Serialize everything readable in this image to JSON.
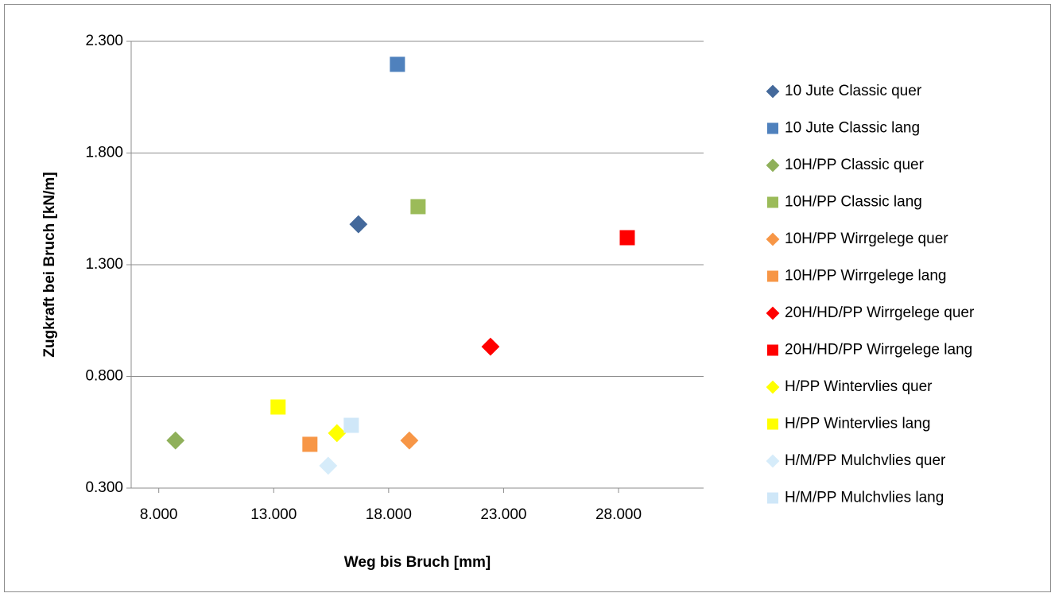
{
  "chart_data": {
    "type": "scatter",
    "x_label": "Weg bis Bruch [mm]",
    "y_label": "Zugkraft bei Bruch [kN/m]",
    "xlim": [
      6800,
      31700
    ],
    "ylim": [
      300,
      2300
    ],
    "xticks": [
      {
        "value": 8000,
        "label": "8.000"
      },
      {
        "value": 13000,
        "label": "13.000"
      },
      {
        "value": 18000,
        "label": "18.000"
      },
      {
        "value": 23000,
        "label": "23.000"
      },
      {
        "value": 28000,
        "label": "28.000"
      }
    ],
    "yticks": [
      {
        "value": 300,
        "label": "0.300"
      },
      {
        "value": 800,
        "label": "0.800"
      },
      {
        "value": 1300,
        "label": "1.300"
      },
      {
        "value": 1800,
        "label": "1.800"
      },
      {
        "value": 2300,
        "label": "2.300"
      }
    ],
    "grid": true,
    "legend": "right",
    "series": [
      {
        "name": "10 Jute Classic quer",
        "color": "#44699b",
        "marker": "diamond",
        "x": [
          16685
        ],
        "values": [
          1481
        ]
      },
      {
        "name": "10 Jute Classic lang",
        "color": "#4f81bd",
        "marker": "square",
        "x": [
          18381
        ],
        "values": [
          2197
        ]
      },
      {
        "name": "10H/PP Classic quer",
        "color": "#8fb05a",
        "marker": "diamond",
        "x": [
          8727
        ],
        "values": [
          513
        ]
      },
      {
        "name": "10H/PP Classic lang",
        "color": "#9bbb59",
        "marker": "square",
        "x": [
          19280
        ],
        "values": [
          1560
        ]
      },
      {
        "name": "10H/PP Wirrgelege quer",
        "color": "#f79646",
        "marker": "diamond",
        "x": [
          18900
        ],
        "values": [
          513
        ]
      },
      {
        "name": "10H/PP Wirrgelege lang",
        "color": "#f79646",
        "marker": "square",
        "x": [
          14575
        ],
        "values": [
          496
        ]
      },
      {
        "name": "20H/HD/PP Wirrgelege quer",
        "color": "#ff0000",
        "marker": "diamond",
        "x": [
          22430
        ],
        "values": [
          933
        ]
      },
      {
        "name": "20H/HD/PP Wirrgelege lang",
        "color": "#ff0000",
        "marker": "square",
        "x": [
          28380
        ],
        "values": [
          1421
        ]
      },
      {
        "name": "H/PP Wintervlies quer",
        "color": "#ffff00",
        "marker": "diamond",
        "x": [
          15751
        ],
        "values": [
          546
        ]
      },
      {
        "name": "H/PP Wintervlies lang",
        "color": "#ffff00",
        "marker": "square",
        "x": [
          13190
        ],
        "values": [
          663
        ]
      },
      {
        "name": "H/M/PP Mulchvlies quer",
        "color": "#d6ecfa",
        "marker": "diamond",
        "x": [
          15370
        ],
        "values": [
          400
        ]
      },
      {
        "name": "H/M/PP Mulchvlies lang",
        "color": "#cfe7f8",
        "marker": "square",
        "x": [
          16374
        ],
        "values": [
          581
        ]
      }
    ]
  }
}
